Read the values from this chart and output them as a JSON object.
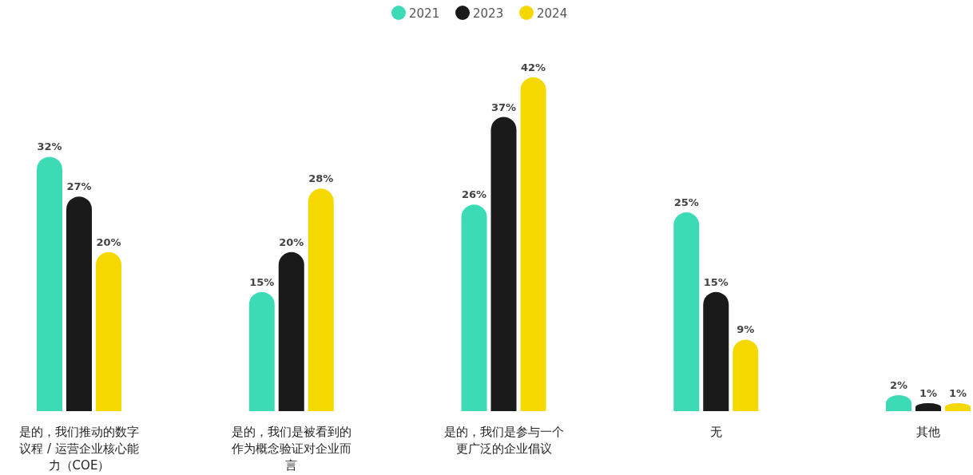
{
  "chart_data": {
    "type": "bar",
    "legend": "top",
    "categories": [
      "是的，我们推动的数字议程 / 运营企业核心能力（COE）",
      "是的，我们是被看到的作为概念验证对企业而言",
      "是的，我们是参与一个更广泛的企业倡议",
      "无",
      "其他"
    ],
    "series": [
      {
        "name": "2021",
        "color": "#3ddbb5",
        "values": [
          32,
          15,
          26,
          25,
          2
        ],
        "value_labels": [
          "32%",
          "15%",
          "26%",
          "25%",
          "2%"
        ]
      },
      {
        "name": "2023",
        "color": "#1a1a1a",
        "values": [
          27,
          20,
          37,
          15,
          1
        ],
        "value_labels": [
          "27%",
          "20%",
          "37%",
          "15%",
          "1%"
        ]
      },
      {
        "name": "2024",
        "color": "#f5d800",
        "values": [
          20,
          28,
          42,
          9,
          1
        ],
        "value_labels": [
          "20%",
          "28%",
          "42%",
          "9%",
          "1%"
        ]
      }
    ]
  }
}
